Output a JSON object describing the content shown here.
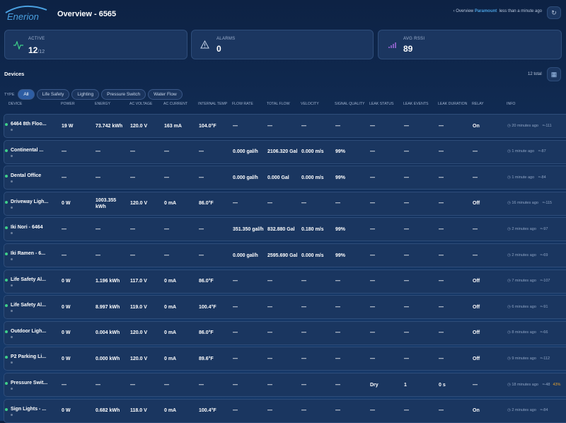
{
  "header": {
    "logo": "Enerion",
    "title": "Overview - 6565",
    "breadcrumb": {
      "parent": "Overview",
      "current": "Paramount",
      "updated": "less than a minute ago"
    }
  },
  "stats": [
    {
      "label": "ACTIVE",
      "value": "12",
      "sub": "/12"
    },
    {
      "label": "ALARMS",
      "value": "0"
    },
    {
      "label": "AVG RSSI",
      "value": "89"
    }
  ],
  "devices": {
    "title": "Devices",
    "total": "12 total",
    "filter_label": "TYPE",
    "filters": [
      "All",
      "Life Safety",
      "Lighting",
      "Pressure Switch",
      "Water Flow"
    ]
  },
  "table": {
    "columns": [
      "DEVICE",
      "POWER",
      "ENERGY",
      "AC VOLTAGE",
      "AC CURRENT",
      "INTERNAL TEMP",
      "FLOW RATE",
      "TOTAL FLOW",
      "VELOCITY",
      "SIGNAL QUALITY",
      "LEAK STATUS",
      "LEAK EVENTS",
      "LEAK DURATION",
      "RELAY",
      "INFO"
    ],
    "rows": [
      {
        "device": "6464 8th Floo...",
        "cells": [
          "19 W",
          "73.742 kWh",
          "120.0 V",
          "163 mA",
          "104.0°F",
          "—",
          "—",
          "—",
          "—",
          "—",
          "—",
          "—",
          "On"
        ],
        "time": "20 minutes ago",
        "rssi": "-111"
      },
      {
        "device": "Continental ...",
        "cells": [
          "—",
          "—",
          "—",
          "—",
          "—",
          "0.000 gal/h",
          "2106.320 Gal",
          "0.000 m/s",
          "99%",
          "—",
          "—",
          "—",
          "—"
        ],
        "time": "1 minute ago",
        "rssi": "-87"
      },
      {
        "device": "Dental Office",
        "cells": [
          "—",
          "—",
          "—",
          "—",
          "—",
          "0.000 gal/h",
          "0.000 Gal",
          "0.000 m/s",
          "99%",
          "—",
          "—",
          "—",
          "—"
        ],
        "time": "1 minute ago",
        "rssi": "-84"
      },
      {
        "device": "Driveway Ligh...",
        "cells": [
          "0 W",
          "1003.355 kWh",
          "120.0 V",
          "0 mA",
          "86.0°F",
          "—",
          "—",
          "—",
          "—",
          "—",
          "—",
          "—",
          "Off"
        ],
        "time": "16 minutes ago",
        "rssi": "-115"
      },
      {
        "device": "Iki Nori - 6464",
        "cells": [
          "—",
          "—",
          "—",
          "—",
          "—",
          "351.350 gal/h",
          "832.880 Gal",
          "0.180 m/s",
          "99%",
          "—",
          "—",
          "—",
          "—"
        ],
        "time": "2 minutes ago",
        "rssi": "-97"
      },
      {
        "device": "Iki Ramen - 6...",
        "cells": [
          "—",
          "—",
          "—",
          "—",
          "—",
          "0.000 gal/h",
          "2595.690 Gal",
          "0.000 m/s",
          "99%",
          "—",
          "—",
          "—",
          "—"
        ],
        "time": "2 minutes ago",
        "rssi": "-69"
      },
      {
        "device": "Life Safety Al...",
        "cells": [
          "0 W",
          "1.196 kWh",
          "117.0 V",
          "0 mA",
          "86.0°F",
          "—",
          "—",
          "—",
          "—",
          "—",
          "—",
          "—",
          "Off"
        ],
        "time": "7 minutes ago",
        "rssi": "-107"
      },
      {
        "device": "Life Safety Al...",
        "cells": [
          "0 W",
          "8.997 kWh",
          "119.0 V",
          "0 mA",
          "100.4°F",
          "—",
          "—",
          "—",
          "—",
          "—",
          "—",
          "—",
          "Off"
        ],
        "time": "6 minutes ago",
        "rssi": "-91"
      },
      {
        "device": "Outdoor Ligh...",
        "cells": [
          "0 W",
          "0.004 kWh",
          "120.0 V",
          "0 mA",
          "86.0°F",
          "—",
          "—",
          "—",
          "—",
          "—",
          "—",
          "—",
          "Off"
        ],
        "time": "8 minutes ago",
        "rssi": "-66"
      },
      {
        "device": "P2 Parking Li...",
        "cells": [
          "0 W",
          "0.000 kWh",
          "120.0 V",
          "0 mA",
          "89.6°F",
          "—",
          "—",
          "—",
          "—",
          "—",
          "—",
          "—",
          "Off"
        ],
        "time": "9 minutes ago",
        "rssi": "-112"
      },
      {
        "device": "Pressure Swit...",
        "cells": [
          "—",
          "—",
          "—",
          "—",
          "—",
          "—",
          "—",
          "—",
          "—",
          "Dry",
          "1",
          "0 s",
          "—"
        ],
        "time": "18 minutes ago",
        "rssi": "-48",
        "battery": "43%"
      },
      {
        "device": "Sign Lights - ...",
        "cells": [
          "0 W",
          "0.682 kWh",
          "118.0 V",
          "0 mA",
          "100.4°F",
          "—",
          "—",
          "—",
          "—",
          "—",
          "—",
          "—",
          "On"
        ],
        "time": "2 minutes ago",
        "rssi": "-84"
      }
    ]
  }
}
